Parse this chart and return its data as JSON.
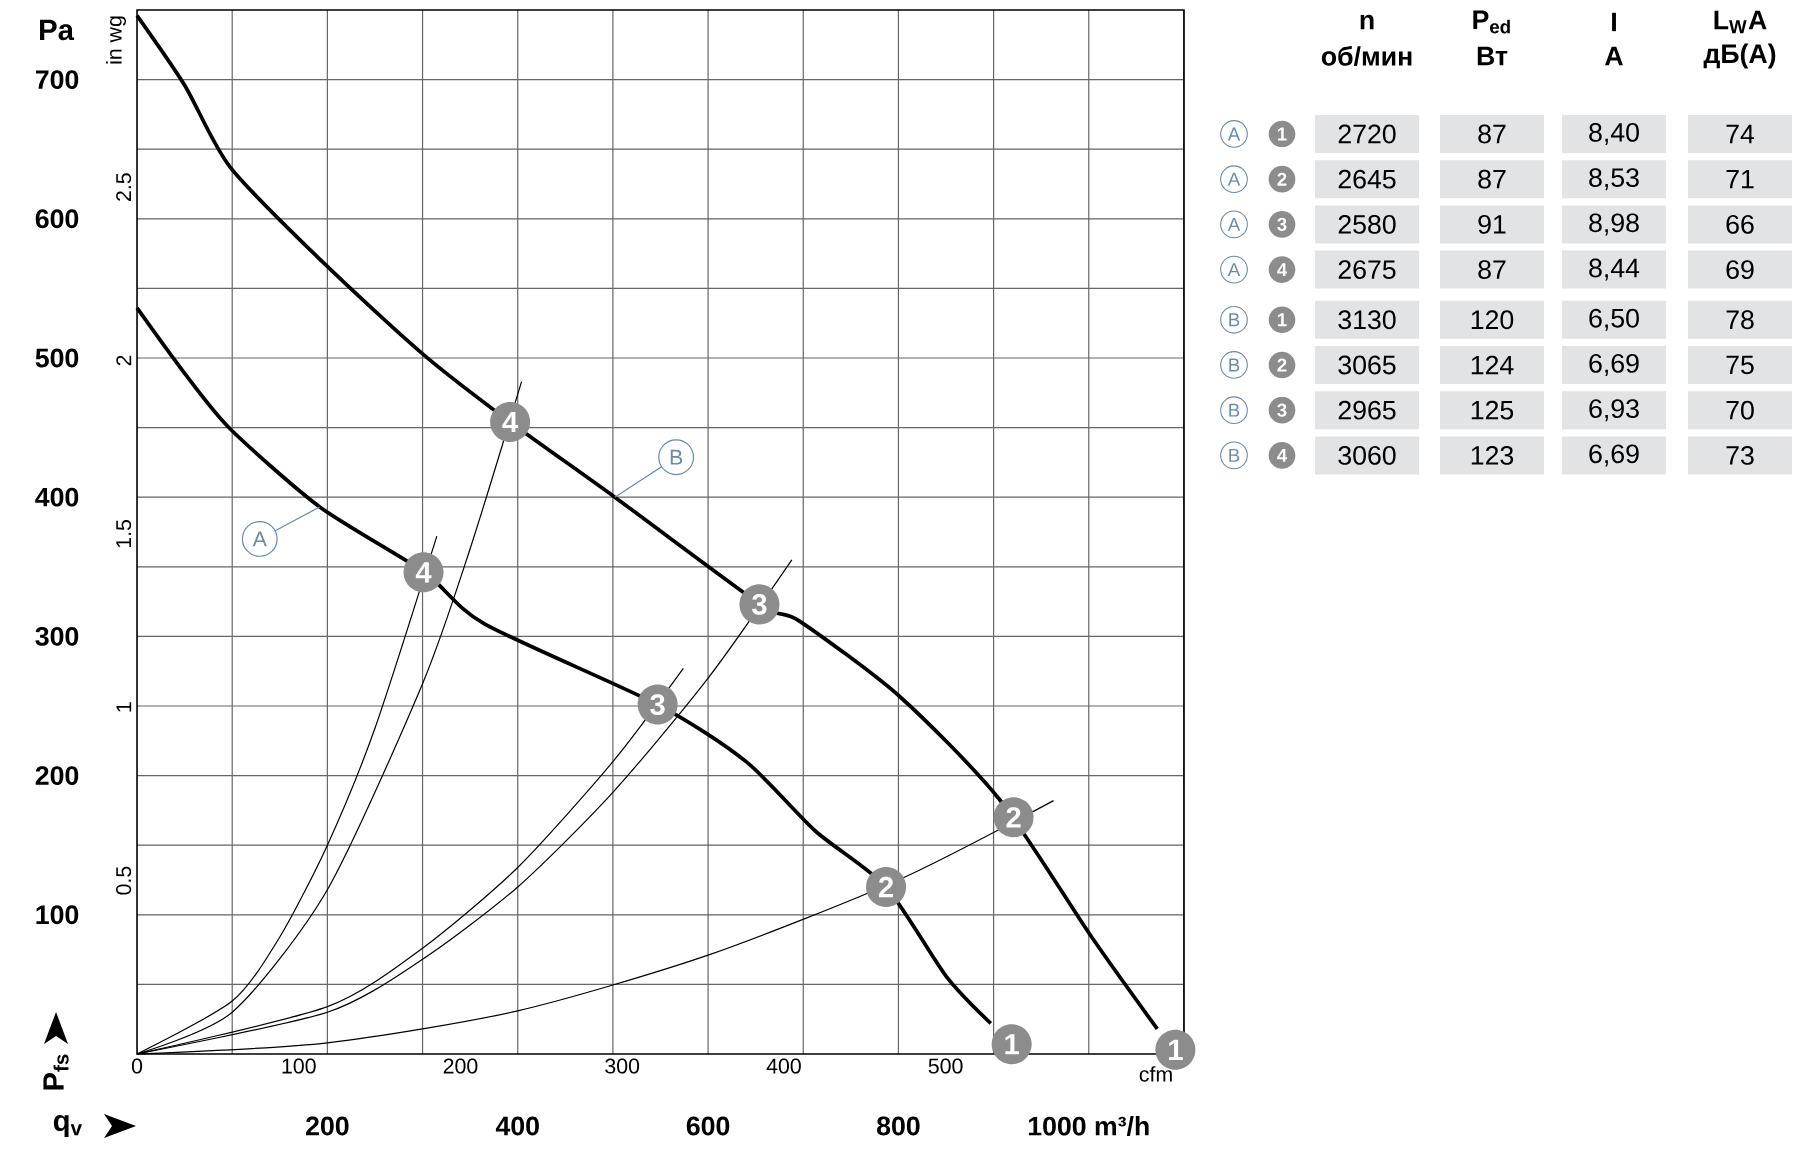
{
  "chart_data": [
    {
      "type": "line",
      "xlabel": "q$_{v}$",
      "ylabel": "P$_{fs}$",
      "x2label": "cfm",
      "y2label": "in wg",
      "xlim": [
        0,
        1100
      ],
      "ylim": [
        0,
        750
      ],
      "x2lim": [
        0,
        647.4
      ],
      "y2lim": [
        0,
        3.011
      ],
      "xticks": [
        {
          "value": 100,
          "label": null
        },
        200,
        {
          "value": 300,
          "label": null
        },
        400,
        {
          "value": 500,
          "label": null
        },
        600,
        {
          "value": 700,
          "label": null
        },
        800,
        {
          "value": 900,
          "label": null
        },
        {
          "value": 1000,
          "label": "1000 m³/h"
        },
        {
          "value": 1100,
          "label": null
        }
      ],
      "yticks": [
        {
          "value": 50,
          "label": null
        },
        100,
        {
          "value": 150,
          "label": null
        },
        200,
        {
          "value": 250,
          "label": null
        },
        300,
        {
          "value": 350,
          "label": null
        },
        400,
        {
          "value": 450,
          "label": null
        },
        500,
        {
          "value": 550,
          "label": null
        },
        600,
        {
          "value": 650,
          "label": null
        },
        700
      ],
      "x2ticks": [
        0,
        100,
        200,
        300,
        400,
        500
      ],
      "y2ticks": [
        0.5,
        1,
        1.5,
        2,
        2.5
      ],
      "grid": true,
      "series": [
        {
          "name": "A",
          "color": "#000000",
          "x": [
            0,
            50,
            98,
            192,
            302,
            365,
            547,
            640,
            713,
            787,
            850,
            897
          ],
          "values": [
            536,
            489,
            449,
            393,
            346,
            309,
            251,
            210,
            160,
            120,
            56,
            22
          ]
        },
        {
          "name": "B",
          "color": "#000000",
          "x": [
            0,
            50,
            98,
            195,
            300,
            392,
            502,
            655,
            696,
            801,
            906,
            1003,
            1072
          ],
          "values": [
            746,
            696,
            637,
            569,
            503,
            454,
            400,
            323,
            311,
            257,
            183,
            84,
            18
          ]
        },
        {
          "color": "#000000",
          "x": [
            0,
            100,
            150,
            200,
            250,
            300,
            315
          ],
          "values": [
            0,
            38,
            84,
            150,
            234,
            null,
            372
          ]
        },
        {
          "color": "#000000",
          "x": [
            0,
            100,
            200,
            300,
            350,
            404
          ],
          "values": [
            0,
            30,
            118,
            266,
            363,
            483
          ]
        },
        {
          "color": "#000000",
          "x": [
            0,
            200,
            300,
            400,
            500,
            574
          ],
          "values": [
            0,
            34,
            76,
            134,
            210,
            277
          ]
        },
        {
          "color": "#000000",
          "x": [
            0,
            200,
            300,
            400,
            500,
            600,
            688
          ],
          "values": [
            0,
            30,
            68,
            120,
            188,
            270,
            355
          ]
        },
        {
          "color": "#000000",
          "x": [
            0,
            200,
            400,
            600,
            800,
            963
          ],
          "values": [
            0,
            8,
            31,
            71,
            125,
            182
          ]
        }
      ],
      "annotations": [
        "Pa",
        {
          "text": "4",
          "x": 392,
          "y": 454
        },
        {
          "text": "4",
          "x": 301,
          "y": 346
        },
        {
          "text": "3",
          "x": 654,
          "y": 323
        },
        {
          "text": "3",
          "x": 547,
          "y": 251
        },
        {
          "text": "2",
          "x": 921,
          "y": 170
        },
        {
          "text": "2",
          "x": 787,
          "y": 120
        },
        {
          "text": "1",
          "x": 1091,
          "y": 3
        },
        {
          "text": "1",
          "x": 919,
          "y": 7
        }
      ]
    },
    {
      "type": "other",
      "categories": [
        "n",
        "P$_{ed}$",
        "I",
        "L$_{W}$A"
      ],
      "annotations": [
        "об/мин",
        "Вт",
        "A",
        "дБ(A)"
      ],
      "y_categories": [
        "A",
        "A",
        "A",
        "A",
        "B",
        "B",
        "B",
        "B"
      ],
      "y2_categories": [
        "1",
        "2",
        "3",
        "4",
        "1",
        "2",
        "3",
        "4"
      ],
      "cell_labels": [
        [
          "2720",
          "87",
          "8,40",
          "74"
        ],
        [
          "2645",
          "87",
          "8,53",
          "71"
        ],
        [
          "2580",
          "91",
          "8,98",
          "66"
        ],
        [
          "2675",
          "87",
          "8,44",
          "69"
        ],
        [
          "3130",
          "120",
          "6,50",
          "78"
        ],
        [
          "3065",
          "124",
          "6,69",
          "75"
        ],
        [
          "2965",
          "125",
          "6,93",
          "70"
        ],
        [
          "3060",
          "123",
          "6,69",
          "73"
        ]
      ]
    }
  ]
}
